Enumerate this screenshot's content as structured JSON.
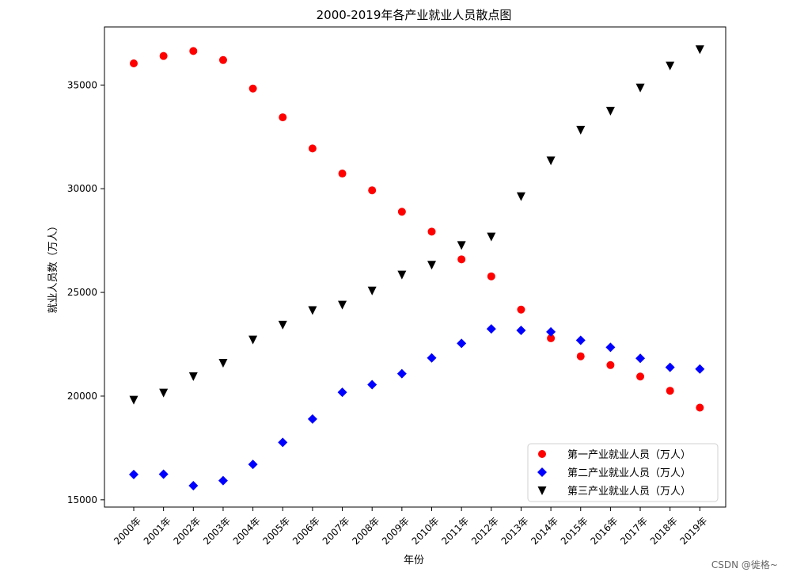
{
  "watermark": "CSDN @徙格~",
  "chart_data": {
    "type": "scatter",
    "title": "2000-2019年各产业就业人员散点图",
    "xlabel": "年份",
    "ylabel": "就业人员数（万人）",
    "categories": [
      "2000年",
      "2001年",
      "2002年",
      "2003年",
      "2004年",
      "2005年",
      "2006年",
      "2007年",
      "2008年",
      "2009年",
      "2010年",
      "2011年",
      "2012年",
      "2013年",
      "2014年",
      "2015年",
      "2016年",
      "2017年",
      "2018年",
      "2019年"
    ],
    "ylim": [
      14650,
      37800
    ],
    "yticks": [
      15000,
      20000,
      25000,
      30000,
      35000
    ],
    "grid": false,
    "legend_position": "lower right",
    "series": [
      {
        "name": "第一产业就业人员（万人）",
        "marker": "circle",
        "color": "#ff0000",
        "values": [
          36043,
          36399,
          36640,
          36204,
          34830,
          33442,
          31941,
          30731,
          29923,
          28890,
          27931,
          26594,
          25773,
          24171,
          22790,
          21919,
          21496,
          20944,
          20258,
          19445
        ]
      },
      {
        "name": "第二产业就业人员（万人）",
        "marker": "diamond",
        "color": "#0000ff",
        "values": [
          16219,
          16234,
          15682,
          15927,
          16709,
          17766,
          18894,
          20186,
          20553,
          21080,
          21842,
          22544,
          23241,
          23170,
          23099,
          22693,
          22350,
          21824,
          21390,
          21305
        ]
      },
      {
        "name": "第三产业就业人员（万人）",
        "marker": "triangle-down",
        "color": "#000000",
        "values": [
          19823,
          20165,
          20958,
          21605,
          22725,
          23439,
          24143,
          24404,
          25087,
          25857,
          26332,
          27282,
          27690,
          29636,
          31364,
          32839,
          33757,
          34872,
          35938,
          36721
        ]
      }
    ]
  }
}
